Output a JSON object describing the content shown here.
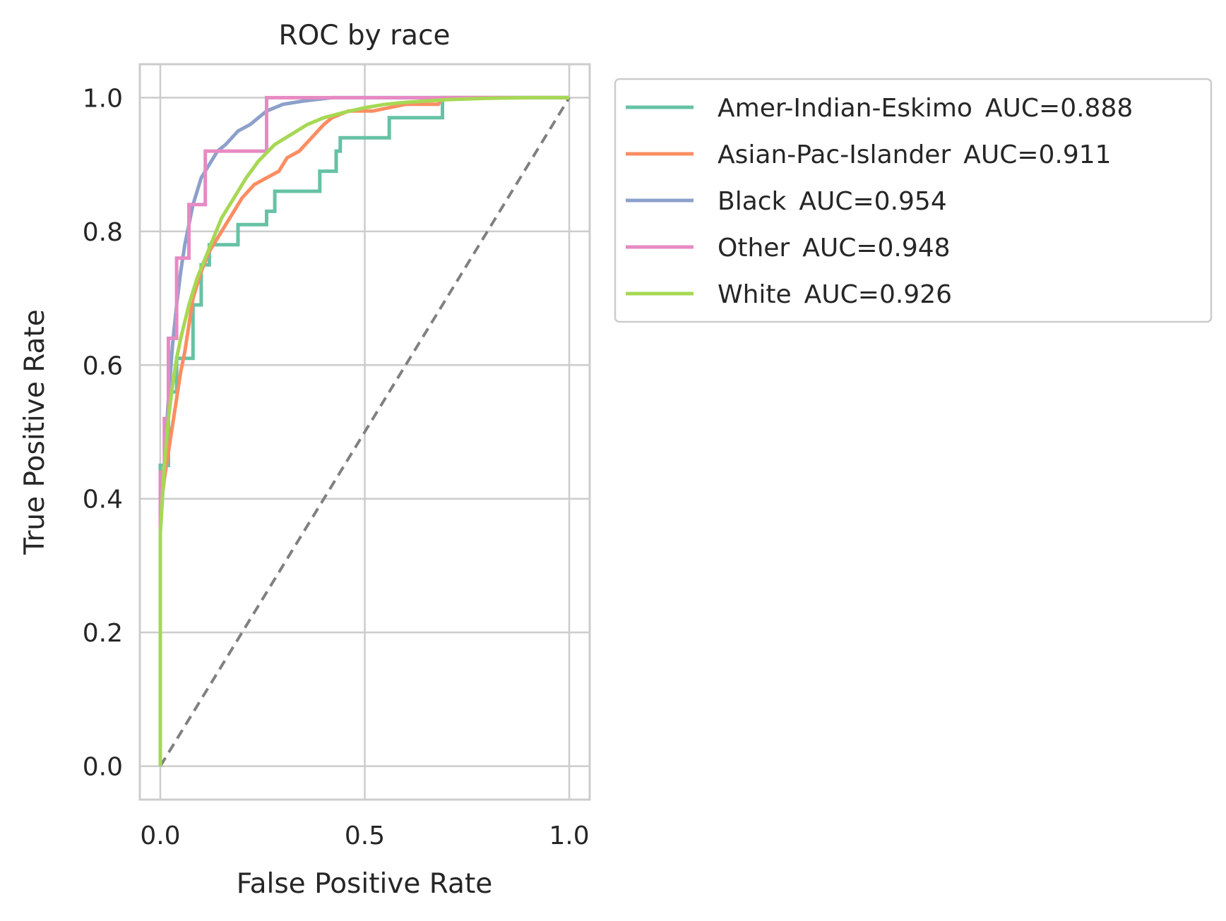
{
  "chart_data": {
    "type": "line",
    "title": "ROC by race",
    "xlabel": "False Positive Rate",
    "ylabel": "True Positive Rate",
    "xlim": [
      -0.05,
      1.05
    ],
    "ylim": [
      -0.05,
      1.05
    ],
    "x_ticks": [
      0.0,
      0.5,
      1.0
    ],
    "x_tick_labels": [
      "0.0",
      "0.5",
      "1.0"
    ],
    "y_ticks": [
      0.0,
      0.2,
      0.4,
      0.6,
      0.8,
      1.0
    ],
    "y_tick_labels": [
      "0.0",
      "0.2",
      "0.4",
      "0.6",
      "0.8",
      "1.0"
    ],
    "grid": true,
    "legend_position": "outside-upper-right",
    "diagonal": {
      "x": [
        0,
        1
      ],
      "y": [
        0,
        1
      ],
      "color": "#808080",
      "style": "dashed"
    },
    "series": [
      {
        "name": "Amer-Indian-Eskimo",
        "auc_label": "AUC=0.888",
        "color": "#66c2a5",
        "x": [
          0.0,
          0.0,
          0.02,
          0.02,
          0.04,
          0.04,
          0.08,
          0.08,
          0.1,
          0.1,
          0.12,
          0.12,
          0.19,
          0.19,
          0.26,
          0.26,
          0.28,
          0.28,
          0.39,
          0.39,
          0.43,
          0.43,
          0.44,
          0.44,
          0.56,
          0.56,
          0.69,
          0.69,
          1.0
        ],
        "y": [
          0.0,
          0.45,
          0.45,
          0.56,
          0.56,
          0.61,
          0.61,
          0.69,
          0.69,
          0.75,
          0.75,
          0.78,
          0.78,
          0.81,
          0.81,
          0.83,
          0.83,
          0.86,
          0.86,
          0.89,
          0.89,
          0.92,
          0.92,
          0.94,
          0.94,
          0.97,
          0.97,
          1.0,
          1.0
        ]
      },
      {
        "name": "Asian-Pac-Islander",
        "auc_label": "AUC=0.911",
        "color": "#fc8d62",
        "x": [
          0.0,
          0.0,
          0.01,
          0.02,
          0.03,
          0.04,
          0.05,
          0.06,
          0.07,
          0.08,
          0.1,
          0.12,
          0.14,
          0.16,
          0.18,
          0.2,
          0.23,
          0.26,
          0.29,
          0.31,
          0.34,
          0.37,
          0.4,
          0.42,
          0.46,
          0.52,
          0.6,
          0.68,
          0.69,
          0.8,
          1.0
        ],
        "y": [
          0.0,
          0.38,
          0.43,
          0.47,
          0.51,
          0.55,
          0.59,
          0.62,
          0.66,
          0.7,
          0.74,
          0.77,
          0.79,
          0.81,
          0.83,
          0.85,
          0.87,
          0.88,
          0.89,
          0.91,
          0.92,
          0.94,
          0.96,
          0.97,
          0.98,
          0.98,
          0.99,
          0.99,
          1.0,
          1.0,
          1.0
        ]
      },
      {
        "name": "Black",
        "auc_label": "AUC=0.954",
        "color": "#8da0cb",
        "x": [
          0.0,
          0.0,
          0.01,
          0.02,
          0.03,
          0.04,
          0.05,
          0.06,
          0.07,
          0.08,
          0.09,
          0.1,
          0.12,
          0.14,
          0.16,
          0.19,
          0.22,
          0.26,
          0.3,
          0.35,
          0.42,
          0.5,
          0.6,
          1.0
        ],
        "y": [
          0.0,
          0.35,
          0.45,
          0.55,
          0.63,
          0.69,
          0.74,
          0.78,
          0.81,
          0.84,
          0.86,
          0.88,
          0.9,
          0.92,
          0.93,
          0.95,
          0.96,
          0.98,
          0.99,
          0.995,
          1.0,
          1.0,
          1.0,
          1.0
        ]
      },
      {
        "name": "Other",
        "auc_label": "AUC=0.948",
        "color": "#e78ac3",
        "x": [
          0.0,
          0.0,
          0.01,
          0.01,
          0.02,
          0.02,
          0.04,
          0.04,
          0.07,
          0.07,
          0.11,
          0.11,
          0.15,
          0.15,
          0.26,
          0.26,
          1.0
        ],
        "y": [
          0.0,
          0.44,
          0.44,
          0.52,
          0.52,
          0.64,
          0.64,
          0.76,
          0.76,
          0.84,
          0.84,
          0.92,
          0.92,
          0.92,
          0.92,
          1.0,
          1.0
        ]
      },
      {
        "name": "White",
        "auc_label": "AUC=0.926",
        "color": "#a6d854",
        "x": [
          0.0,
          0.0,
          0.01,
          0.02,
          0.03,
          0.04,
          0.05,
          0.07,
          0.09,
          0.11,
          0.13,
          0.15,
          0.18,
          0.21,
          0.24,
          0.28,
          0.32,
          0.36,
          0.4,
          0.45,
          0.5,
          0.55,
          0.6,
          0.7,
          0.8,
          0.9,
          1.0
        ],
        "y": [
          0.0,
          0.35,
          0.45,
          0.52,
          0.57,
          0.61,
          0.64,
          0.69,
          0.73,
          0.76,
          0.79,
          0.82,
          0.85,
          0.88,
          0.905,
          0.93,
          0.945,
          0.96,
          0.97,
          0.978,
          0.985,
          0.99,
          0.993,
          0.997,
          0.999,
          1.0,
          1.0
        ]
      }
    ]
  }
}
